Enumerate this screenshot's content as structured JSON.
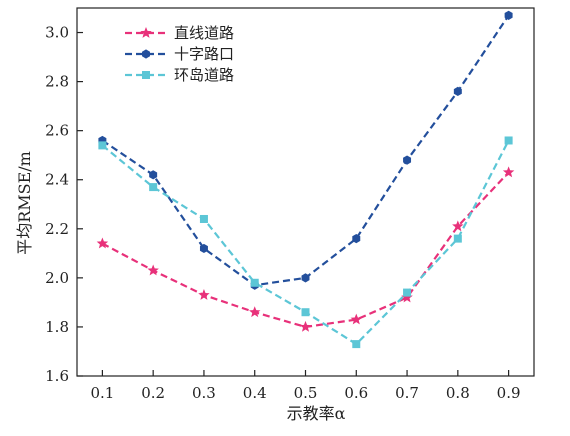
{
  "chart_data": {
    "type": "line",
    "title": "",
    "xlabel": "示教率α",
    "ylabel": "平均RMSE/m",
    "x": [
      0.1,
      0.2,
      0.3,
      0.4,
      0.5,
      0.6,
      0.7,
      0.8,
      0.9
    ],
    "x_tick_labels": [
      "0.1",
      "0.2",
      "0.3",
      "0.4",
      "0.5",
      "0.6",
      "0.7",
      "0.8",
      "0.9"
    ],
    "xlim": [
      0.05,
      0.95
    ],
    "ylim": [
      1.6,
      3.1
    ],
    "y_ticks": [
      1.6,
      1.8,
      2.0,
      2.2,
      2.4,
      2.6,
      2.8,
      3.0
    ],
    "y_tick_labels": [
      "1.6",
      "1.8",
      "2.0",
      "2.2",
      "2.4",
      "2.6",
      "2.8",
      "3.0"
    ],
    "grid": false,
    "legend_position": "top-left",
    "series": [
      {
        "name": "直线道路",
        "color": "#e8317a",
        "marker": "star",
        "line_style": "dashed",
        "values": [
          2.14,
          2.03,
          1.93,
          1.86,
          1.8,
          1.83,
          1.92,
          2.21,
          2.43
        ]
      },
      {
        "name": "十字路口",
        "color": "#234f9c",
        "marker": "hexagon",
        "line_style": "dashed",
        "values": [
          2.56,
          2.42,
          2.12,
          1.97,
          2.0,
          2.16,
          2.48,
          2.76,
          3.07
        ]
      },
      {
        "name": "环岛道路",
        "color": "#5cc6d6",
        "marker": "square",
        "line_style": "dashed",
        "values": [
          2.54,
          2.37,
          2.24,
          1.98,
          1.86,
          1.73,
          1.94,
          2.16,
          2.56
        ]
      }
    ]
  }
}
